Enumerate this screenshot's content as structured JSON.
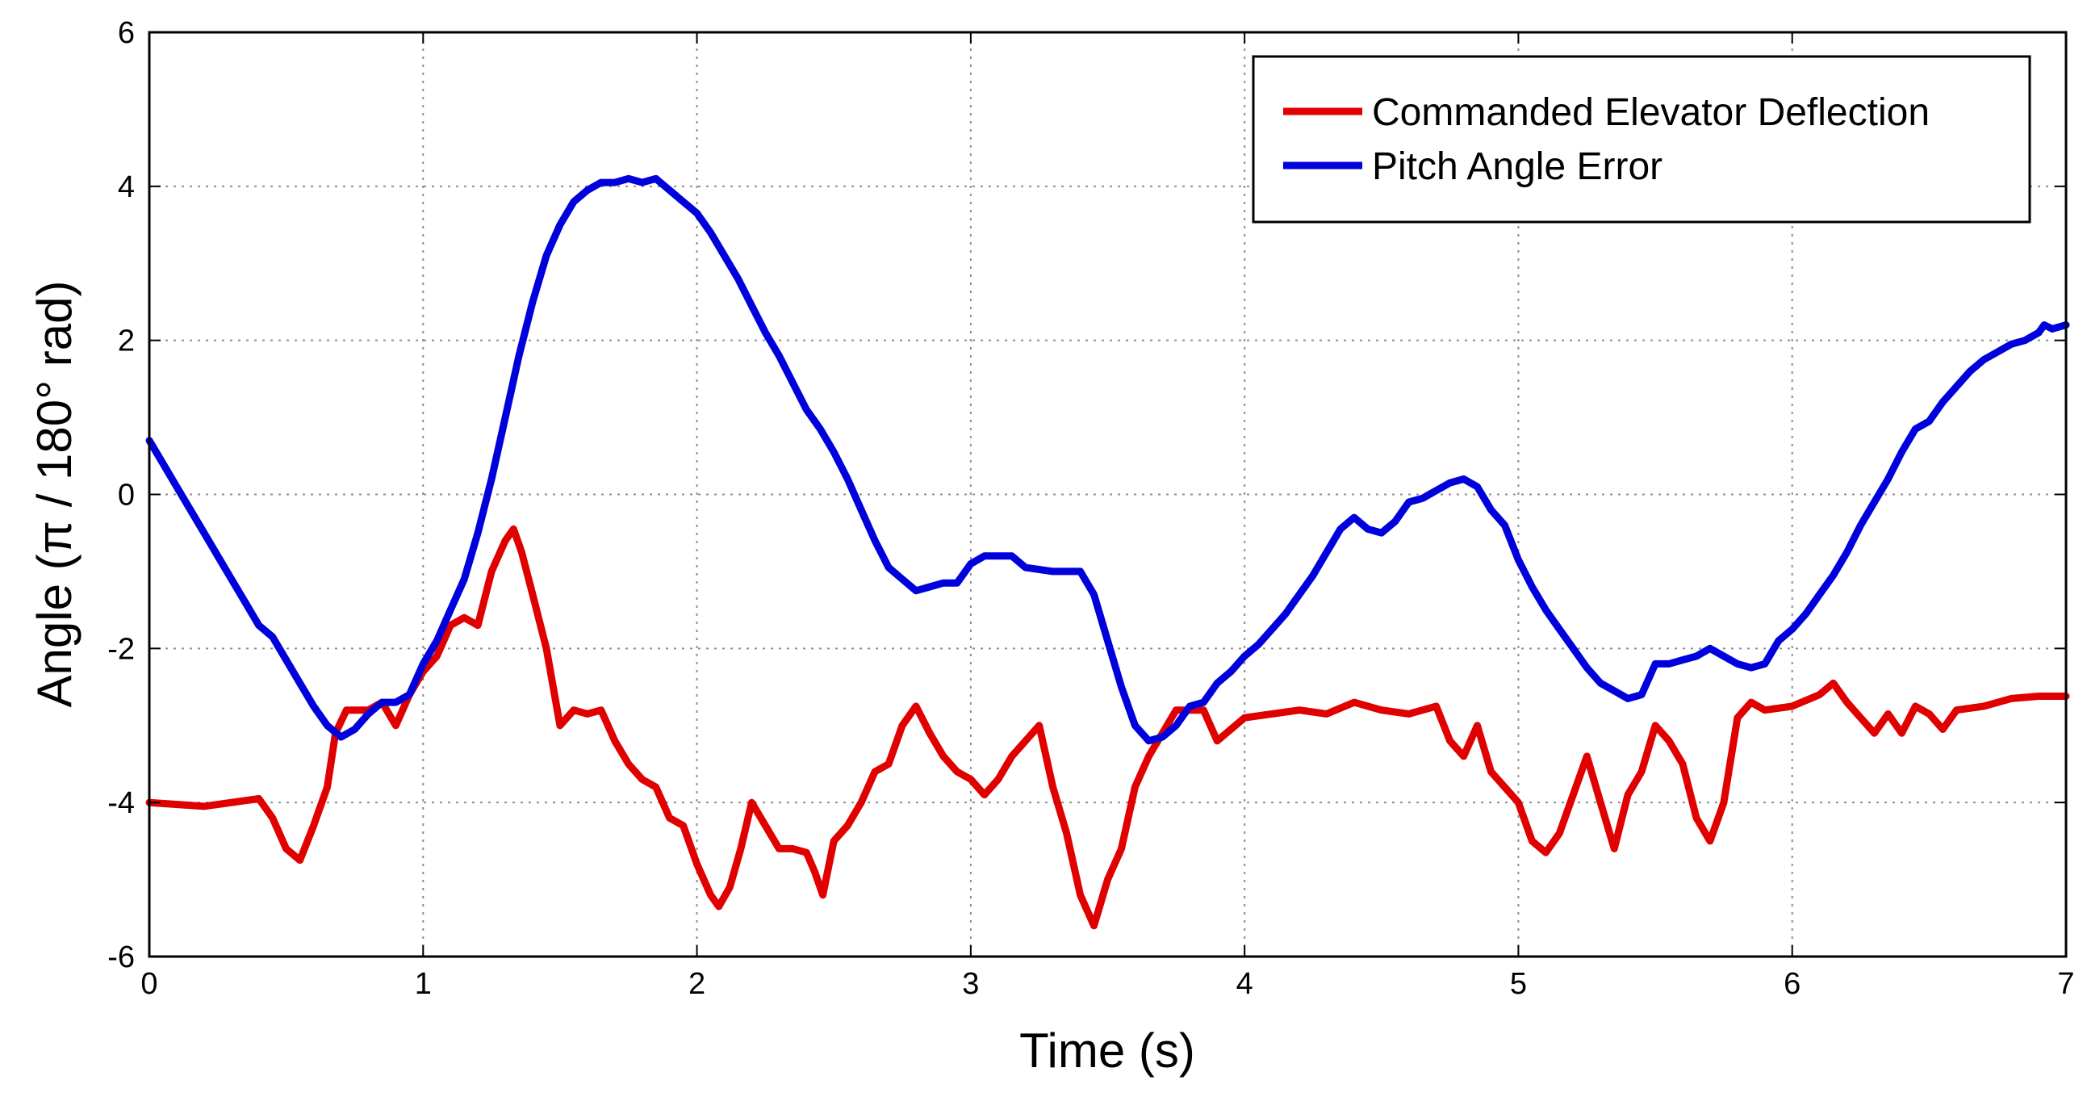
{
  "chart_data": {
    "type": "line",
    "title": "",
    "xlabel": "Time (s)",
    "ylabel": "Angle (π / 180° rad)",
    "xlim": [
      0,
      7
    ],
    "ylim": [
      -6,
      6
    ],
    "x_ticks": [
      "0",
      "1",
      "2",
      "3",
      "4",
      "5",
      "6",
      "7"
    ],
    "y_ticks": [
      "6",
      "4",
      "2",
      "0",
      "-2",
      "-4",
      "-6"
    ],
    "grid": true,
    "legend_position": "top-right",
    "series": [
      {
        "name": "Commanded Elevator Deflection",
        "color": "#e00000",
        "points": [
          [
            0,
            -4.0
          ],
          [
            0.2,
            -4.05
          ],
          [
            0.3,
            -4.0
          ],
          [
            0.4,
            -3.95
          ],
          [
            0.45,
            -4.2
          ],
          [
            0.5,
            -4.6
          ],
          [
            0.55,
            -4.75
          ],
          [
            0.6,
            -4.3
          ],
          [
            0.65,
            -3.8
          ],
          [
            0.68,
            -3.1
          ],
          [
            0.72,
            -2.8
          ],
          [
            0.8,
            -2.8
          ],
          [
            0.85,
            -2.7
          ],
          [
            0.9,
            -3.0
          ],
          [
            0.95,
            -2.6
          ],
          [
            1.0,
            -2.3
          ],
          [
            1.05,
            -2.1
          ],
          [
            1.1,
            -1.7
          ],
          [
            1.15,
            -1.6
          ],
          [
            1.2,
            -1.7
          ],
          [
            1.25,
            -1.0
          ],
          [
            1.3,
            -0.6
          ],
          [
            1.33,
            -0.45
          ],
          [
            1.36,
            -0.75
          ],
          [
            1.4,
            -1.3
          ],
          [
            1.45,
            -2.0
          ],
          [
            1.5,
            -3.0
          ],
          [
            1.55,
            -2.8
          ],
          [
            1.6,
            -2.85
          ],
          [
            1.65,
            -2.8
          ],
          [
            1.7,
            -3.2
          ],
          [
            1.75,
            -3.5
          ],
          [
            1.8,
            -3.7
          ],
          [
            1.85,
            -3.8
          ],
          [
            1.9,
            -4.2
          ],
          [
            1.95,
            -4.3
          ],
          [
            2.0,
            -4.8
          ],
          [
            2.05,
            -5.2
          ],
          [
            2.08,
            -5.35
          ],
          [
            2.12,
            -5.1
          ],
          [
            2.16,
            -4.6
          ],
          [
            2.2,
            -4.0
          ],
          [
            2.25,
            -4.3
          ],
          [
            2.3,
            -4.6
          ],
          [
            2.35,
            -4.6
          ],
          [
            2.4,
            -4.65
          ],
          [
            2.43,
            -4.9
          ],
          [
            2.46,
            -5.2
          ],
          [
            2.5,
            -4.5
          ],
          [
            2.55,
            -4.3
          ],
          [
            2.6,
            -4.0
          ],
          [
            2.65,
            -3.6
          ],
          [
            2.7,
            -3.5
          ],
          [
            2.75,
            -3.0
          ],
          [
            2.8,
            -2.75
          ],
          [
            2.85,
            -3.1
          ],
          [
            2.9,
            -3.4
          ],
          [
            2.95,
            -3.6
          ],
          [
            3.0,
            -3.7
          ],
          [
            3.05,
            -3.9
          ],
          [
            3.1,
            -3.7
          ],
          [
            3.15,
            -3.4
          ],
          [
            3.2,
            -3.2
          ],
          [
            3.25,
            -3.0
          ],
          [
            3.3,
            -3.8
          ],
          [
            3.35,
            -4.4
          ],
          [
            3.4,
            -5.2
          ],
          [
            3.45,
            -5.6
          ],
          [
            3.5,
            -5.0
          ],
          [
            3.55,
            -4.6
          ],
          [
            3.6,
            -3.8
          ],
          [
            3.65,
            -3.4
          ],
          [
            3.7,
            -3.1
          ],
          [
            3.75,
            -2.8
          ],
          [
            3.85,
            -2.8
          ],
          [
            3.9,
            -3.2
          ],
          [
            4.0,
            -2.9
          ],
          [
            4.1,
            -2.85
          ],
          [
            4.2,
            -2.8
          ],
          [
            4.3,
            -2.85
          ],
          [
            4.4,
            -2.7
          ],
          [
            4.5,
            -2.8
          ],
          [
            4.6,
            -2.85
          ],
          [
            4.7,
            -2.75
          ],
          [
            4.75,
            -3.2
          ],
          [
            4.8,
            -3.4
          ],
          [
            4.85,
            -3.0
          ],
          [
            4.9,
            -3.6
          ],
          [
            5.0,
            -4.0
          ],
          [
            5.05,
            -4.5
          ],
          [
            5.1,
            -4.65
          ],
          [
            5.15,
            -4.4
          ],
          [
            5.2,
            -3.9
          ],
          [
            5.25,
            -3.4
          ],
          [
            5.3,
            -4.0
          ],
          [
            5.35,
            -4.6
          ],
          [
            5.4,
            -3.9
          ],
          [
            5.45,
            -3.6
          ],
          [
            5.5,
            -3.0
          ],
          [
            5.55,
            -3.2
          ],
          [
            5.6,
            -3.5
          ],
          [
            5.65,
            -4.2
          ],
          [
            5.7,
            -4.5
          ],
          [
            5.75,
            -4.0
          ],
          [
            5.8,
            -2.9
          ],
          [
            5.85,
            -2.7
          ],
          [
            5.9,
            -2.8
          ],
          [
            6.0,
            -2.75
          ],
          [
            6.1,
            -2.6
          ],
          [
            6.15,
            -2.45
          ],
          [
            6.2,
            -2.7
          ],
          [
            6.25,
            -2.9
          ],
          [
            6.3,
            -3.1
          ],
          [
            6.35,
            -2.85
          ],
          [
            6.4,
            -3.1
          ],
          [
            6.45,
            -2.75
          ],
          [
            6.5,
            -2.85
          ],
          [
            6.55,
            -3.05
          ],
          [
            6.6,
            -2.8
          ],
          [
            6.7,
            -2.75
          ],
          [
            6.8,
            -2.65
          ],
          [
            6.9,
            -2.62
          ],
          [
            7.0,
            -2.62
          ]
        ]
      },
      {
        "name": "Pitch Angle Error",
        "color": "#0000dd",
        "points": [
          [
            0,
            0.7
          ],
          [
            0.05,
            0.4
          ],
          [
            0.1,
            0.1
          ],
          [
            0.15,
            -0.2
          ],
          [
            0.2,
            -0.5
          ],
          [
            0.25,
            -0.8
          ],
          [
            0.3,
            -1.1
          ],
          [
            0.35,
            -1.4
          ],
          [
            0.4,
            -1.7
          ],
          [
            0.45,
            -1.85
          ],
          [
            0.5,
            -2.15
          ],
          [
            0.55,
            -2.45
          ],
          [
            0.6,
            -2.75
          ],
          [
            0.65,
            -3.0
          ],
          [
            0.7,
            -3.15
          ],
          [
            0.75,
            -3.05
          ],
          [
            0.8,
            -2.85
          ],
          [
            0.85,
            -2.7
          ],
          [
            0.9,
            -2.7
          ],
          [
            0.95,
            -2.6
          ],
          [
            1.0,
            -2.2
          ],
          [
            1.05,
            -1.9
          ],
          [
            1.1,
            -1.5
          ],
          [
            1.15,
            -1.1
          ],
          [
            1.2,
            -0.5
          ],
          [
            1.25,
            0.2
          ],
          [
            1.3,
            1.0
          ],
          [
            1.35,
            1.8
          ],
          [
            1.4,
            2.5
          ],
          [
            1.45,
            3.1
          ],
          [
            1.5,
            3.5
          ],
          [
            1.55,
            3.8
          ],
          [
            1.6,
            3.95
          ],
          [
            1.65,
            4.05
          ],
          [
            1.7,
            4.05
          ],
          [
            1.75,
            4.1
          ],
          [
            1.8,
            4.05
          ],
          [
            1.85,
            4.1
          ],
          [
            1.9,
            3.95
          ],
          [
            1.95,
            3.8
          ],
          [
            2.0,
            3.65
          ],
          [
            2.05,
            3.4
          ],
          [
            2.1,
            3.1
          ],
          [
            2.15,
            2.8
          ],
          [
            2.2,
            2.45
          ],
          [
            2.25,
            2.1
          ],
          [
            2.3,
            1.8
          ],
          [
            2.35,
            1.45
          ],
          [
            2.4,
            1.1
          ],
          [
            2.45,
            0.85
          ],
          [
            2.5,
            0.55
          ],
          [
            2.55,
            0.2
          ],
          [
            2.6,
            -0.2
          ],
          [
            2.65,
            -0.6
          ],
          [
            2.7,
            -0.95
          ],
          [
            2.75,
            -1.1
          ],
          [
            2.8,
            -1.25
          ],
          [
            2.85,
            -1.2
          ],
          [
            2.9,
            -1.15
          ],
          [
            2.95,
            -1.15
          ],
          [
            3.0,
            -0.9
          ],
          [
            3.05,
            -0.8
          ],
          [
            3.1,
            -0.8
          ],
          [
            3.15,
            -0.8
          ],
          [
            3.2,
            -0.95
          ],
          [
            3.3,
            -1.0
          ],
          [
            3.4,
            -1.0
          ],
          [
            3.45,
            -1.3
          ],
          [
            3.5,
            -1.9
          ],
          [
            3.55,
            -2.5
          ],
          [
            3.6,
            -3.0
          ],
          [
            3.65,
            -3.2
          ],
          [
            3.7,
            -3.15
          ],
          [
            3.75,
            -3.0
          ],
          [
            3.8,
            -2.75
          ],
          [
            3.85,
            -2.7
          ],
          [
            3.9,
            -2.45
          ],
          [
            3.95,
            -2.3
          ],
          [
            4.0,
            -2.1
          ],
          [
            4.05,
            -1.95
          ],
          [
            4.1,
            -1.75
          ],
          [
            4.15,
            -1.55
          ],
          [
            4.2,
            -1.3
          ],
          [
            4.25,
            -1.05
          ],
          [
            4.3,
            -0.75
          ],
          [
            4.35,
            -0.45
          ],
          [
            4.4,
            -0.3
          ],
          [
            4.45,
            -0.45
          ],
          [
            4.5,
            -0.5
          ],
          [
            4.55,
            -0.35
          ],
          [
            4.6,
            -0.1
          ],
          [
            4.65,
            -0.05
          ],
          [
            4.7,
            0.05
          ],
          [
            4.75,
            0.15
          ],
          [
            4.8,
            0.2
          ],
          [
            4.85,
            0.1
          ],
          [
            4.9,
            -0.2
          ],
          [
            4.95,
            -0.4
          ],
          [
            5.0,
            -0.85
          ],
          [
            5.05,
            -1.2
          ],
          [
            5.1,
            -1.5
          ],
          [
            5.15,
            -1.75
          ],
          [
            5.2,
            -2.0
          ],
          [
            5.25,
            -2.25
          ],
          [
            5.3,
            -2.45
          ],
          [
            5.35,
            -2.55
          ],
          [
            5.4,
            -2.65
          ],
          [
            5.45,
            -2.6
          ],
          [
            5.5,
            -2.2
          ],
          [
            5.55,
            -2.2
          ],
          [
            5.6,
            -2.15
          ],
          [
            5.65,
            -2.1
          ],
          [
            5.7,
            -2.0
          ],
          [
            5.75,
            -2.1
          ],
          [
            5.8,
            -2.2
          ],
          [
            5.85,
            -2.25
          ],
          [
            5.9,
            -2.2
          ],
          [
            5.95,
            -1.9
          ],
          [
            6.0,
            -1.75
          ],
          [
            6.05,
            -1.55
          ],
          [
            6.1,
            -1.3
          ],
          [
            6.15,
            -1.05
          ],
          [
            6.2,
            -0.75
          ],
          [
            6.25,
            -0.4
          ],
          [
            6.3,
            -0.1
          ],
          [
            6.35,
            0.2
          ],
          [
            6.4,
            0.55
          ],
          [
            6.45,
            0.85
          ],
          [
            6.5,
            0.95
          ],
          [
            6.55,
            1.2
          ],
          [
            6.6,
            1.4
          ],
          [
            6.65,
            1.6
          ],
          [
            6.7,
            1.75
          ],
          [
            6.75,
            1.85
          ],
          [
            6.8,
            1.95
          ],
          [
            6.85,
            2.0
          ],
          [
            6.9,
            2.1
          ],
          [
            6.92,
            2.2
          ],
          [
            6.95,
            2.15
          ],
          [
            7.0,
            2.2
          ]
        ]
      }
    ]
  }
}
